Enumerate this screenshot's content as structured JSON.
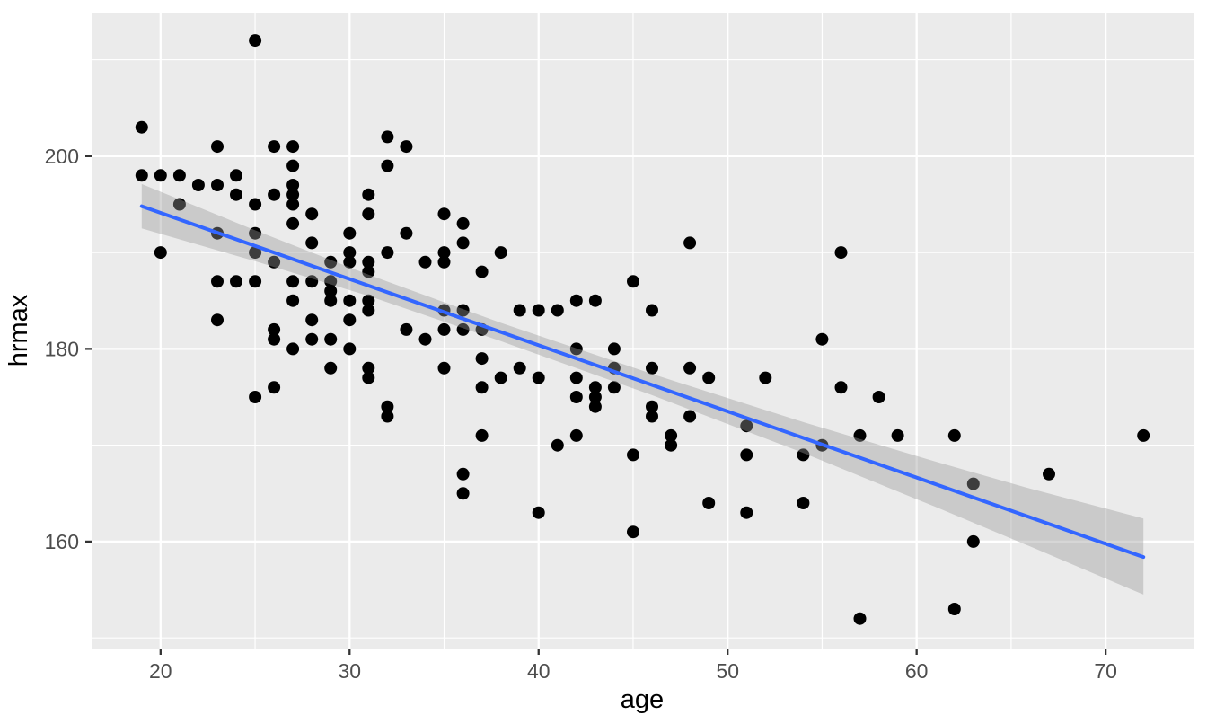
{
  "figure": {
    "kind": "ggplot-style scatter plot with linear smooth and confidence ribbon",
    "legend": "none",
    "title": ""
  },
  "chart_data": {
    "type": "scatter",
    "title": "",
    "xlabel": "age",
    "ylabel": "hrmax",
    "x_domain": [
      16.35,
      74.65
    ],
    "y_domain": [
      148.9,
      214.9
    ],
    "x_ticks": [
      20,
      30,
      40,
      50,
      60,
      70
    ],
    "x_tick_labels": [
      "20",
      "30",
      "40",
      "50",
      "60",
      "70"
    ],
    "x_minor": [
      25,
      35,
      45,
      55,
      65
    ],
    "y_ticks": [
      160,
      180,
      200
    ],
    "y_tick_labels": [
      "160",
      "180",
      "200"
    ],
    "y_minor": [
      150,
      170,
      190,
      210
    ],
    "grid": "major+minor white on grey panel",
    "legend_position": "none",
    "points": [
      [
        25,
        212
      ],
      [
        19,
        203
      ],
      [
        23,
        201
      ],
      [
        26,
        201
      ],
      [
        27,
        201
      ],
      [
        32,
        202
      ],
      [
        33,
        201
      ],
      [
        27,
        199
      ],
      [
        32,
        199
      ],
      [
        19,
        198
      ],
      [
        20,
        198
      ],
      [
        21,
        198
      ],
      [
        24,
        198
      ],
      [
        22,
        197
      ],
      [
        23,
        197
      ],
      [
        27,
        197
      ],
      [
        24,
        196
      ],
      [
        26,
        196
      ],
      [
        27,
        196
      ],
      [
        31,
        196
      ],
      [
        21,
        195
      ],
      [
        25,
        195
      ],
      [
        27,
        195
      ],
      [
        28,
        194
      ],
      [
        31,
        194
      ],
      [
        35,
        194
      ],
      [
        36,
        193
      ],
      [
        27,
        193
      ],
      [
        30,
        192
      ],
      [
        23,
        192
      ],
      [
        25,
        192
      ],
      [
        33,
        192
      ],
      [
        28,
        191
      ],
      [
        36,
        191
      ],
      [
        48,
        191
      ],
      [
        20,
        190
      ],
      [
        25,
        190
      ],
      [
        30,
        190
      ],
      [
        32,
        190
      ],
      [
        35,
        190
      ],
      [
        38,
        190
      ],
      [
        56,
        190
      ],
      [
        26,
        189
      ],
      [
        29,
        189
      ],
      [
        30,
        189
      ],
      [
        31,
        189
      ],
      [
        34,
        189
      ],
      [
        35,
        189
      ],
      [
        37,
        188
      ],
      [
        31,
        188
      ],
      [
        23,
        187
      ],
      [
        24,
        187
      ],
      [
        25,
        187
      ],
      [
        27,
        187
      ],
      [
        28,
        187
      ],
      [
        29,
        187
      ],
      [
        45,
        187
      ],
      [
        29,
        186
      ],
      [
        27,
        185
      ],
      [
        29,
        185
      ],
      [
        30,
        185
      ],
      [
        31,
        185
      ],
      [
        42,
        185
      ],
      [
        43,
        185
      ],
      [
        35,
        184
      ],
      [
        36,
        184
      ],
      [
        39,
        184
      ],
      [
        40,
        184
      ],
      [
        41,
        184
      ],
      [
        46,
        184
      ],
      [
        31,
        184
      ],
      [
        23,
        183
      ],
      [
        28,
        183
      ],
      [
        30,
        183
      ],
      [
        26,
        182
      ],
      [
        33,
        182
      ],
      [
        35,
        182
      ],
      [
        36,
        182
      ],
      [
        37,
        182
      ],
      [
        26,
        181
      ],
      [
        28,
        181
      ],
      [
        29,
        181
      ],
      [
        34,
        181
      ],
      [
        55,
        181
      ],
      [
        27,
        180
      ],
      [
        30,
        180
      ],
      [
        42,
        180
      ],
      [
        44,
        180
      ],
      [
        37,
        179
      ],
      [
        29,
        178
      ],
      [
        31,
        178
      ],
      [
        35,
        178
      ],
      [
        39,
        178
      ],
      [
        44,
        178
      ],
      [
        46,
        178
      ],
      [
        48,
        178
      ],
      [
        31,
        177
      ],
      [
        38,
        177
      ],
      [
        40,
        177
      ],
      [
        42,
        177
      ],
      [
        49,
        177
      ],
      [
        52,
        177
      ],
      [
        26,
        176
      ],
      [
        37,
        176
      ],
      [
        43,
        176
      ],
      [
        44,
        176
      ],
      [
        56,
        176
      ],
      [
        25,
        175
      ],
      [
        42,
        175
      ],
      [
        43,
        175
      ],
      [
        58,
        175
      ],
      [
        32,
        174
      ],
      [
        43,
        174
      ],
      [
        46,
        174
      ],
      [
        32,
        173
      ],
      [
        46,
        173
      ],
      [
        48,
        173
      ],
      [
        51,
        172
      ],
      [
        37,
        171
      ],
      [
        42,
        171
      ],
      [
        47,
        171
      ],
      [
        57,
        171
      ],
      [
        59,
        171
      ],
      [
        62,
        171
      ],
      [
        72,
        171
      ],
      [
        41,
        170
      ],
      [
        47,
        170
      ],
      [
        55,
        170
      ],
      [
        45,
        169
      ],
      [
        51,
        169
      ],
      [
        54,
        169
      ],
      [
        36,
        167
      ],
      [
        67,
        167
      ],
      [
        63,
        166
      ],
      [
        36,
        165
      ],
      [
        49,
        164
      ],
      [
        54,
        164
      ],
      [
        40,
        163
      ],
      [
        51,
        163
      ],
      [
        45,
        161
      ],
      [
        63,
        160
      ],
      [
        57,
        152
      ],
      [
        62,
        153
      ]
    ],
    "smooth": {
      "method": "linear",
      "line": [
        [
          19,
          194.8
        ],
        [
          72,
          158.4
        ]
      ],
      "ribbon_upper": [
        [
          19,
          197.1
        ],
        [
          25,
          192.3
        ],
        [
          31,
          187.7
        ],
        [
          38,
          182.7
        ],
        [
          46,
          177.4
        ],
        [
          54,
          172.4
        ],
        [
          61,
          168.3
        ],
        [
          66,
          165.5
        ],
        [
          72,
          162.4
        ]
      ],
      "ribbon_lower": [
        [
          19,
          192.5
        ],
        [
          25,
          189.1
        ],
        [
          31,
          185.5
        ],
        [
          38,
          180.8
        ],
        [
          46,
          175.2
        ],
        [
          54,
          169.2
        ],
        [
          61,
          163.6
        ],
        [
          66,
          159.5
        ],
        [
          72,
          154.5
        ]
      ]
    },
    "colors": {
      "panel_bg": "#EBEBEB",
      "grid": "#FFFFFF",
      "point": "#000000",
      "smooth_line": "#3366FF",
      "ribbon_fill": "#999999",
      "ribbon_alpha": 0.4,
      "tick_label": "#4D4D4D",
      "axis_title": "#000000",
      "tick_mark": "#333333",
      "outer_bg": "#FFFFFF"
    }
  }
}
